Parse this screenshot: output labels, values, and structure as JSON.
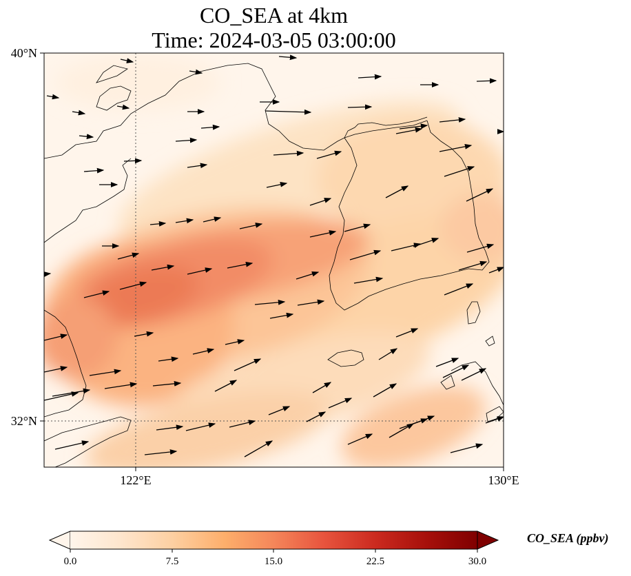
{
  "title": {
    "line1": "CO_SEA at 4km",
    "line2": "Time: 2024-03-05 03:00:00"
  },
  "map": {
    "lat_labels": [
      "40°N",
      "32°N"
    ],
    "lon_labels": [
      "122°E",
      "130°E"
    ],
    "extent": {
      "lon_min": 120,
      "lon_max": 130,
      "lat_min": 31,
      "lat_max": 40
    },
    "gridlines": {
      "style": "dotted",
      "lons": [
        122
      ],
      "lats": [
        32
      ]
    },
    "field": "CO_SEA",
    "plume_peak_approx": 17,
    "colormap": [
      "#fff5eb",
      "#fdd49e",
      "#fdae6b",
      "#f16913",
      "#d94801",
      "#7f0000"
    ],
    "coastline_color": "#000000"
  },
  "colorbar": {
    "label": "CO_SEA (ppbv)",
    "ticks": [
      "0.0",
      "7.5",
      "15.0",
      "22.5",
      "30.0"
    ],
    "min": 0,
    "max": 30,
    "extend": "both"
  },
  "wind": {
    "description_icon": "arrow-icon",
    "direction": "east-northeast"
  }
}
